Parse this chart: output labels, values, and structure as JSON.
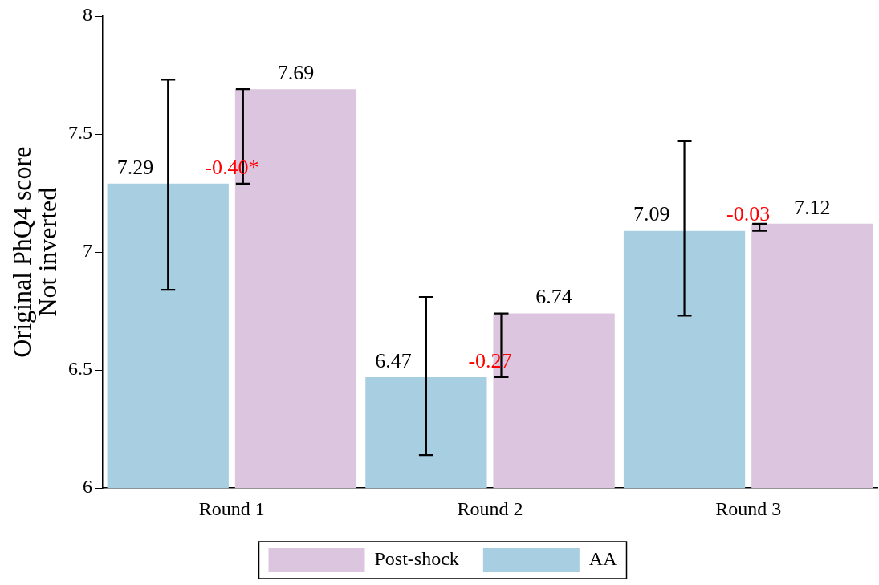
{
  "chart_data": {
    "type": "bar",
    "ylabel": "Original PhQ4 score\nNot inverted",
    "categories": [
      "Round 1",
      "Round 2",
      "Round 3"
    ],
    "series": [
      {
        "name": "AA",
        "color": "#a8cee1",
        "values": [
          7.29,
          6.47,
          7.09
        ],
        "errors": [
          [
            6.84,
            7.73
          ],
          [
            6.14,
            6.81
          ],
          [
            6.73,
            7.47
          ]
        ]
      },
      {
        "name": "Post-shock",
        "color": "#dcc5de",
        "values": [
          7.69,
          6.74,
          7.12
        ],
        "errors": [
          [
            7.29,
            7.69
          ],
          [
            6.47,
            6.74
          ],
          [
            7.09,
            7.12
          ]
        ]
      }
    ],
    "ylim": [
      6,
      8
    ],
    "yticks": [
      6,
      6.5,
      7,
      7.5,
      8
    ],
    "grid": false,
    "legend": "bottom",
    "data_labels": true,
    "annotations": [
      "-0.40*",
      "-0.27",
      "-0.03"
    ]
  }
}
